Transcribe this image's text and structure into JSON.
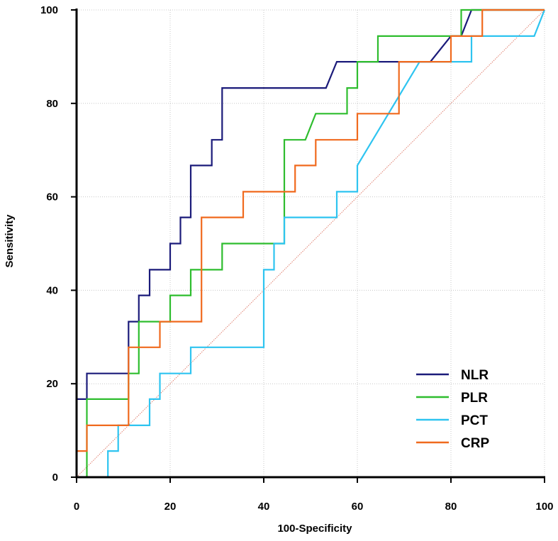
{
  "chart_data": {
    "type": "line",
    "title": "",
    "xlabel": "100-Specificity",
    "ylabel": "Sensitivity",
    "xlim": [
      0,
      100
    ],
    "ylim": [
      0,
      100
    ],
    "xticks": [
      0,
      20,
      40,
      60,
      80,
      100
    ],
    "yticks": [
      0,
      20,
      40,
      60,
      80,
      100
    ],
    "grid": true,
    "legend_position": "bottom-right",
    "reference_line": {
      "x": [
        0,
        100
      ],
      "y": [
        0,
        100
      ],
      "color": "#e08070",
      "style": "dotted"
    },
    "series": [
      {
        "name": "NLR",
        "color": "#1b1b7a",
        "x": [
          0,
          0,
          2.2,
          2.2,
          11.1,
          11.1,
          13.3,
          13.3,
          15.6,
          15.6,
          20,
          20,
          22.2,
          22.2,
          24.4,
          24.4,
          28.9,
          28.9,
          31.1,
          31.1,
          53.3,
          55.6,
          55.6,
          68.9,
          75.6,
          80,
          82.2,
          84.4,
          84.4,
          100
        ],
        "y": [
          0,
          16.7,
          16.7,
          22.2,
          22.2,
          33.3,
          33.3,
          38.9,
          38.9,
          44.4,
          44.4,
          50,
          50,
          55.6,
          55.6,
          66.7,
          66.7,
          72.2,
          72.2,
          83.3,
          83.3,
          88.9,
          88.9,
          88.9,
          88.9,
          94.4,
          94.4,
          100,
          100,
          100
        ]
      },
      {
        "name": "PLR",
        "color": "#2ebd2e",
        "x": [
          0,
          2.2,
          2.2,
          11.1,
          11.1,
          13.3,
          13.3,
          20,
          20,
          24.4,
          24.4,
          31.1,
          31.1,
          44.4,
          44.4,
          48.9,
          51.1,
          57.8,
          57.8,
          60,
          60,
          64.4,
          64.4,
          82.2,
          82.2,
          100
        ],
        "y": [
          0,
          0,
          16.7,
          16.7,
          22.2,
          22.2,
          33.3,
          33.3,
          38.9,
          38.9,
          44.4,
          44.4,
          50,
          50,
          72.2,
          72.2,
          77.8,
          77.8,
          83.3,
          83.3,
          88.9,
          88.9,
          94.4,
          94.4,
          100,
          100
        ]
      },
      {
        "name": "PCT",
        "color": "#2ec4f0",
        "x": [
          0,
          6.7,
          6.7,
          8.9,
          8.9,
          15.6,
          15.6,
          17.8,
          17.8,
          24.4,
          24.4,
          40,
          40,
          42.2,
          42.2,
          44.4,
          44.4,
          55.6,
          55.6,
          60,
          60,
          73.3,
          84.4,
          84.4,
          97.8,
          100
        ],
        "y": [
          0,
          0,
          5.6,
          5.6,
          11.1,
          11.1,
          16.7,
          16.7,
          22.2,
          22.2,
          27.8,
          27.8,
          44.4,
          44.4,
          50,
          50,
          55.6,
          55.6,
          61.1,
          61.1,
          66.7,
          88.9,
          88.9,
          94.4,
          94.4,
          100
        ]
      },
      {
        "name": "CRP",
        "color": "#f06a1e",
        "x": [
          0,
          0,
          2.2,
          2.2,
          11.1,
          11.1,
          17.8,
          17.8,
          26.7,
          26.7,
          35.6,
          35.6,
          46.7,
          46.7,
          51.1,
          51.1,
          60,
          60,
          68.9,
          68.9,
          80,
          80,
          86.7,
          86.7,
          100
        ],
        "y": [
          0,
          5.6,
          5.6,
          11.1,
          11.1,
          27.8,
          27.8,
          33.3,
          33.3,
          55.6,
          55.6,
          61.1,
          61.1,
          66.7,
          66.7,
          72.2,
          72.2,
          77.8,
          77.8,
          88.9,
          88.9,
          94.4,
          94.4,
          100,
          100
        ]
      }
    ]
  }
}
